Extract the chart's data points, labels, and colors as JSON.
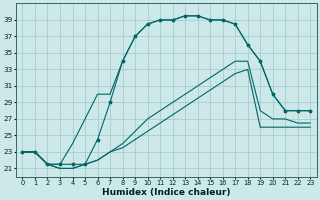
{
  "xlabel": "Humidex (Indice chaleur)",
  "bg_color": "#cde8e8",
  "grid_color": "#aacccc",
  "line_color": "#006666",
  "ylim": [
    20.0,
    41.0
  ],
  "xlim": [
    -0.5,
    23.5
  ],
  "yticks": [
    21,
    23,
    25,
    27,
    29,
    31,
    33,
    35,
    37,
    39
  ],
  "xticks": [
    0,
    1,
    2,
    3,
    4,
    5,
    6,
    7,
    8,
    9,
    10,
    11,
    12,
    13,
    14,
    15,
    16,
    17,
    18,
    19,
    20,
    21,
    22,
    23
  ],
  "hours": [
    0,
    1,
    2,
    3,
    4,
    5,
    6,
    7,
    8,
    9,
    10,
    11,
    12,
    13,
    14,
    15,
    16,
    17,
    18,
    19,
    20,
    21,
    22,
    23
  ],
  "curve_upper1": [
    23,
    23,
    21.5,
    21.5,
    21.5,
    21.5,
    24.5,
    29,
    34,
    37,
    38.5,
    39,
    39,
    39.5,
    39.5,
    39,
    39,
    38.5,
    36,
    34,
    30,
    28,
    28,
    28
  ],
  "curve_upper2": [
    23,
    23,
    21.5,
    21.5,
    24,
    27,
    30,
    30,
    34,
    37,
    38.5,
    39,
    39,
    39.5,
    39.5,
    39,
    39,
    38.5,
    36,
    34,
    30,
    28,
    28,
    28
  ],
  "curve_lower1": [
    23,
    23,
    21.5,
    21,
    21,
    21.5,
    22,
    23,
    24,
    25.5,
    27,
    28,
    29,
    30,
    31,
    32,
    33,
    34,
    34,
    28,
    27,
    27,
    26.5,
    26.5
  ],
  "curve_lower2": [
    23,
    23,
    21.5,
    21,
    21,
    21.5,
    22,
    23,
    23.5,
    24.5,
    25.5,
    26.5,
    27.5,
    28.5,
    29.5,
    30.5,
    31.5,
    32.5,
    33,
    26,
    26,
    26,
    26,
    26
  ]
}
